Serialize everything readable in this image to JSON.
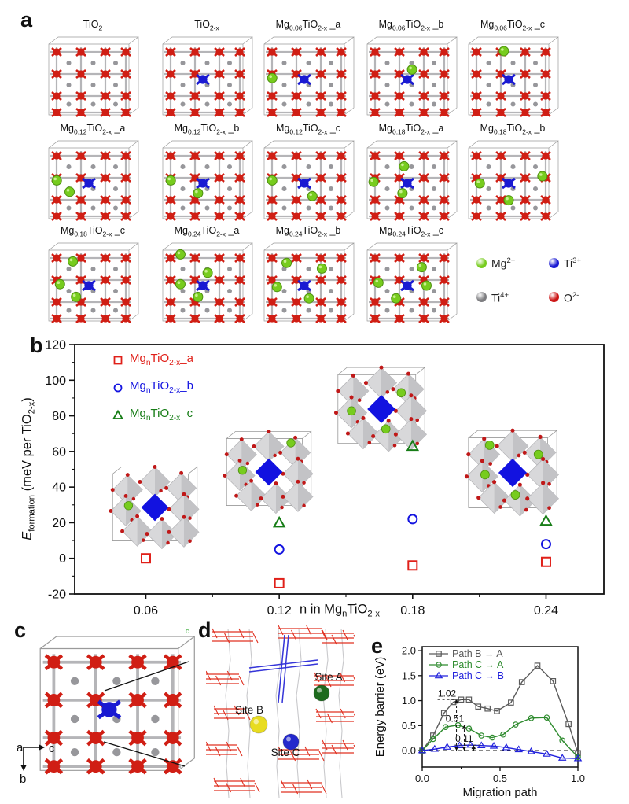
{
  "panels": {
    "a_label": "a",
    "b_label": "b",
    "c_label": "c",
    "d_label": "d",
    "e_label": "e"
  },
  "panel_a": {
    "structures": [
      {
        "label": [
          [
            "t",
            "TiO"
          ],
          [
            "s",
            "2"
          ]
        ],
        "ti3": false,
        "mg": []
      },
      {
        "label": [
          [
            "t",
            "TiO"
          ],
          [
            "s",
            "2-x"
          ]
        ],
        "ti3": true,
        "mg": []
      },
      {
        "label": [
          [
            "t",
            "Mg"
          ],
          [
            "s",
            "0.06"
          ],
          [
            "t",
            "TiO"
          ],
          [
            "s",
            "2-x"
          ],
          [
            "t",
            " _a"
          ]
        ],
        "ti3": true,
        "mg": [
          [
            0.1,
            0.48
          ]
        ]
      },
      {
        "label": [
          [
            "t",
            "Mg"
          ],
          [
            "s",
            "0.06"
          ],
          [
            "t",
            "TiO"
          ],
          [
            "s",
            "2-x"
          ],
          [
            "t",
            " _b"
          ]
        ],
        "ti3": true,
        "mg": [
          [
            0.56,
            0.36
          ]
        ]
      },
      {
        "label": [
          [
            "t",
            "Mg"
          ],
          [
            "s",
            "0.06"
          ],
          [
            "t",
            "TiO"
          ],
          [
            "s",
            "2-x"
          ],
          [
            "t",
            " _c"
          ]
        ],
        "ti3": true,
        "mg": [
          [
            0.44,
            0.1
          ]
        ]
      },
      {
        "label": [
          [
            "t",
            "Mg"
          ],
          [
            "s",
            "0.12"
          ],
          [
            "t",
            "TiO"
          ],
          [
            "s",
            "2-x"
          ],
          [
            "t",
            " _a"
          ]
        ],
        "ti3": true,
        "mg": [
          [
            0.1,
            0.46
          ],
          [
            0.26,
            0.62
          ]
        ]
      },
      {
        "label": [
          [
            "t",
            "Mg"
          ],
          [
            "s",
            "0.12"
          ],
          [
            "t",
            "TiO"
          ],
          [
            "s",
            "2-x"
          ],
          [
            "t",
            " _b"
          ]
        ],
        "ti3": true,
        "mg": [
          [
            0.1,
            0.46
          ],
          [
            0.44,
            0.64
          ]
        ]
      },
      {
        "label": [
          [
            "t",
            "Mg"
          ],
          [
            "s",
            "0.12"
          ],
          [
            "t",
            "TiO"
          ],
          [
            "s",
            "2-x"
          ],
          [
            "t",
            " _c"
          ]
        ],
        "ti3": true,
        "mg": [
          [
            0.1,
            0.46
          ],
          [
            0.6,
            0.68
          ]
        ]
      },
      {
        "label": [
          [
            "t",
            "Mg"
          ],
          [
            "s",
            "0.18"
          ],
          [
            "t",
            "TiO"
          ],
          [
            "s",
            "2-x"
          ],
          [
            "t",
            " _a"
          ]
        ],
        "ti3": true,
        "mg": [
          [
            0.46,
            0.26
          ],
          [
            0.08,
            0.48
          ],
          [
            0.44,
            0.64
          ]
        ]
      },
      {
        "label": [
          [
            "t",
            "Mg"
          ],
          [
            "s",
            "0.18"
          ],
          [
            "t",
            "TiO"
          ],
          [
            "s",
            "2-x"
          ],
          [
            "t",
            " _b"
          ]
        ],
        "ti3": true,
        "mg": [
          [
            0.14,
            0.5
          ],
          [
            0.92,
            0.4
          ],
          [
            0.5,
            0.74
          ]
        ]
      },
      {
        "label": [
          [
            "t",
            "Mg"
          ],
          [
            "s",
            "0.18"
          ],
          [
            "t",
            "TiO"
          ],
          [
            "s",
            "2-x"
          ],
          [
            "t",
            " _c"
          ]
        ],
        "ti3": true,
        "mg": [
          [
            0.3,
            0.16
          ],
          [
            0.14,
            0.48
          ],
          [
            0.34,
            0.66
          ]
        ]
      },
      {
        "label": [
          [
            "t",
            "Mg"
          ],
          [
            "s",
            "0.24"
          ],
          [
            "t",
            "TiO"
          ],
          [
            "s",
            "2-x"
          ],
          [
            "t",
            " _a"
          ]
        ],
        "ti3": true,
        "mg": [
          [
            0.22,
            0.06
          ],
          [
            0.56,
            0.32
          ],
          [
            0.22,
            0.48
          ],
          [
            0.44,
            0.66
          ]
        ]
      },
      {
        "label": [
          [
            "t",
            "Mg"
          ],
          [
            "s",
            "0.24"
          ],
          [
            "t",
            "TiO"
          ],
          [
            "s",
            "2-x"
          ],
          [
            "t",
            " _b"
          ]
        ],
        "ti3": true,
        "mg": [
          [
            0.28,
            0.18
          ],
          [
            0.72,
            0.26
          ],
          [
            0.16,
            0.52
          ],
          [
            0.56,
            0.68
          ]
        ]
      },
      {
        "label": [
          [
            "t",
            "Mg"
          ],
          [
            "s",
            "0.24"
          ],
          [
            "t",
            "TiO"
          ],
          [
            "s",
            "2-x"
          ],
          [
            "t",
            " _c"
          ]
        ],
        "ti3": true,
        "mg": [
          [
            0.68,
            0.24
          ],
          [
            0.14,
            0.46
          ],
          [
            0.74,
            0.5
          ],
          [
            0.36,
            0.68
          ]
        ]
      }
    ],
    "atom_legend": [
      {
        "label": [
          [
            "t",
            "Mg"
          ],
          [
            "p",
            "2+"
          ]
        ],
        "color": "#77cc1e"
      },
      {
        "label": [
          [
            "t",
            "Ti"
          ],
          [
            "p",
            "3+"
          ]
        ],
        "color": "#1a1ad2"
      },
      {
        "label": [
          [
            "t",
            "Ti"
          ],
          [
            "p",
            "4+"
          ]
        ],
        "color": "#7d7d80"
      },
      {
        "label": [
          [
            "t",
            "O"
          ],
          [
            "p",
            "2-"
          ]
        ],
        "color": "#cc1414"
      }
    ]
  },
  "panel_b": {
    "insets": [
      {
        "mg": 1
      },
      {
        "mg": 2
      },
      {
        "mg": 3
      },
      {
        "mg": 4
      }
    ]
  },
  "panel_c": {
    "axis": {
      "a": "a",
      "b": "b",
      "c": "c"
    },
    "corner_label": "c"
  },
  "panel_d": {
    "sites": [
      {
        "label": "Site A",
        "color": "#1e6b1e"
      },
      {
        "label": "Site B",
        "color": "#e8dc20"
      },
      {
        "label": "Site C",
        "color": "#2328cc"
      }
    ]
  },
  "chart_data": [
    {
      "id": "formation-energy",
      "type": "scatter",
      "ylabel_segments": [
        [
          "i",
          "E"
        ],
        [
          "s",
          "formation"
        ],
        [
          "t",
          " (meV per TiO"
        ],
        [
          "s",
          "2-x"
        ],
        [
          "t",
          ")"
        ]
      ],
      "xlabel_segments": [
        [
          "t",
          "n in Mg"
        ],
        [
          "s",
          "n"
        ],
        [
          "t",
          "TiO"
        ],
        [
          "s",
          "2-x"
        ]
      ],
      "xlim": [
        0.028,
        0.266
      ],
      "ylim": [
        -20,
        120
      ],
      "x_ticks": [
        0.06,
        0.12,
        0.18,
        0.24
      ],
      "x_tick_labels": [
        "0.06",
        "0.12",
        "0.18",
        "0.24"
      ],
      "x_minor_ticks": [
        0.09,
        0.15,
        0.21
      ],
      "y_ticks": [
        -20,
        0,
        20,
        40,
        60,
        80,
        100,
        120
      ],
      "y_tick_labels": [
        "-20",
        "0",
        "20",
        "40",
        "60",
        "80",
        "100",
        "120"
      ],
      "grid": false,
      "legend_position": "upper-left",
      "series": [
        {
          "name_segments": [
            [
              "t",
              "Mg"
            ],
            [
              "s",
              "n"
            ],
            [
              "t",
              "TiO"
            ],
            [
              "s",
              "2-x"
            ],
            [
              "t",
              "_a"
            ]
          ],
          "marker": "square",
          "color": "#e02019",
          "x": [
            0.06,
            0.12,
            0.18,
            0.24
          ],
          "y": [
            0,
            -14,
            -4,
            -2
          ]
        },
        {
          "name_segments": [
            [
              "t",
              "Mg"
            ],
            [
              "s",
              "n"
            ],
            [
              "t",
              "TiO"
            ],
            [
              "s",
              "2-x"
            ],
            [
              "t",
              "_b"
            ]
          ],
          "marker": "circle",
          "color": "#1414e0",
          "x": [
            0.12,
            0.18,
            0.24
          ],
          "y": [
            5,
            22,
            8
          ]
        },
        {
          "name_segments": [
            [
              "t",
              "Mg"
            ],
            [
              "s",
              "n"
            ],
            [
              "t",
              "TiO"
            ],
            [
              "s",
              "2-x"
            ],
            [
              "t",
              "_c"
            ]
          ],
          "marker": "triangle",
          "color": "#177d17",
          "x": [
            0.12,
            0.18,
            0.24
          ],
          "y": [
            20,
            63,
            21
          ]
        }
      ]
    },
    {
      "id": "energy-barrier",
      "type": "line",
      "xlabel": "Migration path",
      "ylabel": "Energy barrier (eV)",
      "xlim": [
        0,
        1
      ],
      "ylim": [
        -0.33,
        2.08
      ],
      "x_ticks": [
        0.0,
        0.5,
        1.0
      ],
      "x_tick_labels": [
        "0.0",
        "0.5",
        "1.0"
      ],
      "x_minor_ticks": [
        0.25,
        0.75
      ],
      "y_ticks": [
        0.0,
        0.5,
        1.0,
        1.5,
        2.0
      ],
      "y_tick_labels": [
        "0.0",
        "0.5",
        "1.0",
        "1.5",
        "2.0"
      ],
      "zero_line_dashed": true,
      "legend_position": "upper-left",
      "annotations": [
        {
          "text": "1.02",
          "x": 0.22,
          "y": 1.02
        },
        {
          "text": "0.51",
          "x": 0.27,
          "y": 0.51
        },
        {
          "text": "0.11",
          "x": 0.33,
          "y": 0.11
        }
      ],
      "series": [
        {
          "name": "Path B → A",
          "marker": "square",
          "color": "#5a5a5a",
          "x": [
            0,
            0.07,
            0.14,
            0.2,
            0.25,
            0.3,
            0.36,
            0.42,
            0.48,
            0.57,
            0.64,
            0.74,
            0.84,
            0.94,
            1.0
          ],
          "y": [
            0,
            0.3,
            0.75,
            0.97,
            1.02,
            1.02,
            0.88,
            0.84,
            0.79,
            0.96,
            1.37,
            1.7,
            1.39,
            0.53,
            -0.05
          ]
        },
        {
          "name": "Path C → A",
          "marker": "circle",
          "color": "#2e8b2e",
          "x": [
            0,
            0.07,
            0.15,
            0.23,
            0.3,
            0.38,
            0.45,
            0.52,
            0.6,
            0.7,
            0.8,
            0.9,
            1.0
          ],
          "y": [
            0,
            0.23,
            0.47,
            0.51,
            0.44,
            0.3,
            0.26,
            0.32,
            0.52,
            0.65,
            0.66,
            0.2,
            -0.13
          ]
        },
        {
          "name": "Path C → B",
          "marker": "triangle",
          "color": "#2020dc",
          "x": [
            0,
            0.08,
            0.16,
            0.24,
            0.31,
            0.38,
            0.46,
            0.54,
            0.62,
            0.7,
            0.8,
            0.9,
            1.0
          ],
          "y": [
            0,
            0.03,
            0.07,
            0.1,
            0.11,
            0.1,
            0.09,
            0.06,
            0.02,
            -0.02,
            -0.07,
            -0.15,
            -0.16
          ]
        }
      ]
    }
  ]
}
